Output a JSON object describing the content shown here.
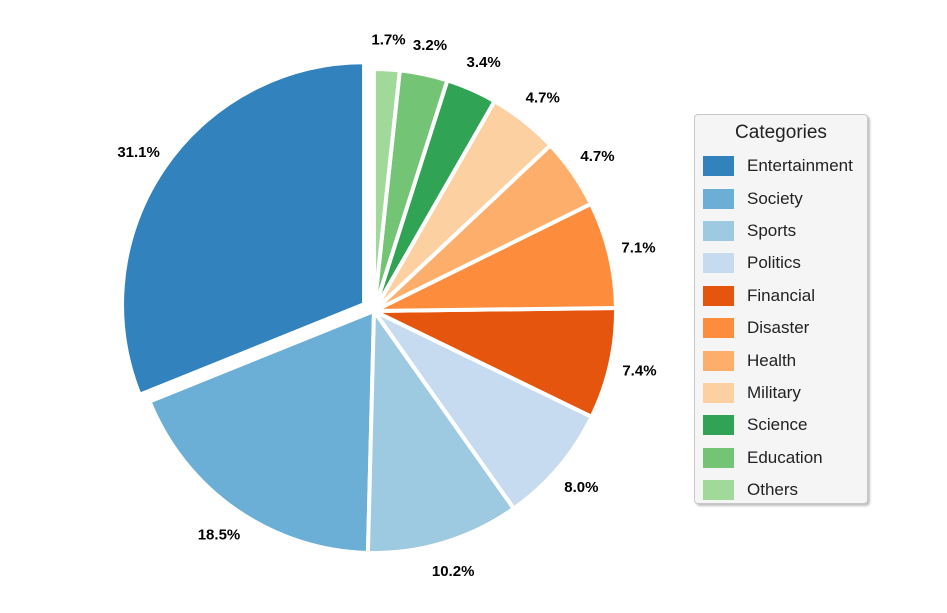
{
  "chart_data": {
    "type": "pie",
    "legend_title": "Categories",
    "legend_position": "right",
    "start": "top, counter-clockwise from 12 o'clock for first slice",
    "slices": [
      {
        "name": "Entertainment",
        "value": 31.1,
        "label": "31.1%",
        "color": "#3182bd"
      },
      {
        "name": "Society",
        "value": 18.5,
        "label": "18.5%",
        "color": "#6baed6"
      },
      {
        "name": "Sports",
        "value": 10.2,
        "label": "10.2%",
        "color": "#9ecae1"
      },
      {
        "name": "Politics",
        "value": 8.0,
        "label": "8.0%",
        "color": "#c6dbef"
      },
      {
        "name": "Financial",
        "value": 7.4,
        "label": "7.4%",
        "color": "#e6550d"
      },
      {
        "name": "Disaster",
        "value": 7.1,
        "label": "7.1%",
        "color": "#fd8d3c"
      },
      {
        "name": "Health",
        "value": 4.7,
        "label": "4.7%",
        "color": "#fdae6b"
      },
      {
        "name": "Military",
        "value": 4.7,
        "label": "4.7%",
        "color": "#fdd0a2"
      },
      {
        "name": "Science",
        "value": 3.4,
        "label": "3.4%",
        "color": "#31a354"
      },
      {
        "name": "Education",
        "value": 3.2,
        "label": "3.2%",
        "color": "#74c476"
      },
      {
        "name": "Others",
        "value": 1.7,
        "label": "1.7%",
        "color": "#a1d99b"
      }
    ],
    "exploded": [
      "Entertainment"
    ]
  }
}
